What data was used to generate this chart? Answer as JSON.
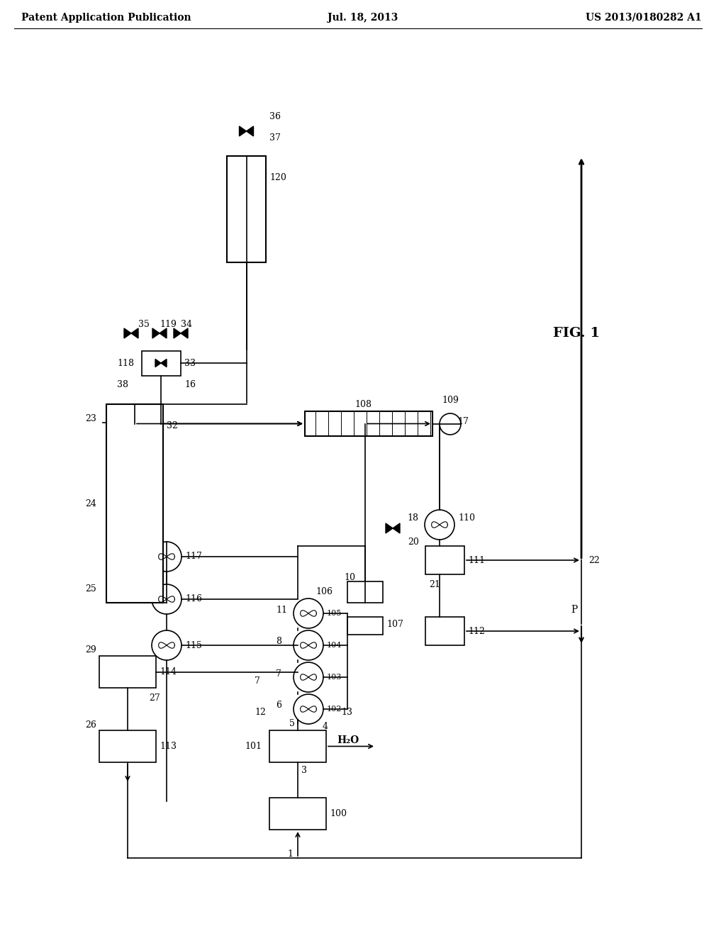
{
  "title_left": "Patent Application Publication",
  "title_center": "Jul. 18, 2013",
  "title_right": "US 2013/0180282 A1",
  "fig_label": "FIG. 1",
  "bg_color": "#ffffff",
  "line_color": "#000000",
  "header_font_size": 11,
  "label_font_size": 9
}
